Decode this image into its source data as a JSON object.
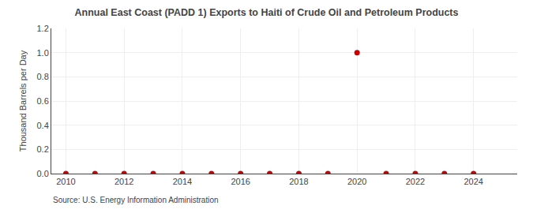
{
  "chart_data": {
    "type": "scatter",
    "title": "Annual East Coast (PADD 1) Exports to Haiti of Crude Oil and Petroleum Products",
    "ylabel": "Thousand Barrels per Day",
    "source": "Source: U.S. Energy Information Administration",
    "x": [
      2010,
      2011,
      2012,
      2013,
      2014,
      2015,
      2016,
      2017,
      2018,
      2019,
      2020,
      2021,
      2022,
      2023,
      2024
    ],
    "values": [
      0.0,
      0.0,
      0.0,
      0.0,
      0.0,
      0.0,
      0.0,
      0.0,
      0.0,
      0.0,
      1.0,
      0.0,
      0.0,
      0.0,
      0.0
    ],
    "color": "#cc0000",
    "marker": "circle",
    "xlim": [
      2009.5,
      2025.5
    ],
    "ylim": [
      0.0,
      1.2
    ],
    "xticks": [
      2010,
      2012,
      2014,
      2016,
      2018,
      2020,
      2022,
      2024
    ],
    "yticks": [
      {
        "value": 0.0,
        "label": "0.0"
      },
      0.2,
      0.4,
      0.6,
      0.8,
      {
        "value": 1.0,
        "label": "1.0"
      },
      1.2
    ],
    "grid": true
  }
}
